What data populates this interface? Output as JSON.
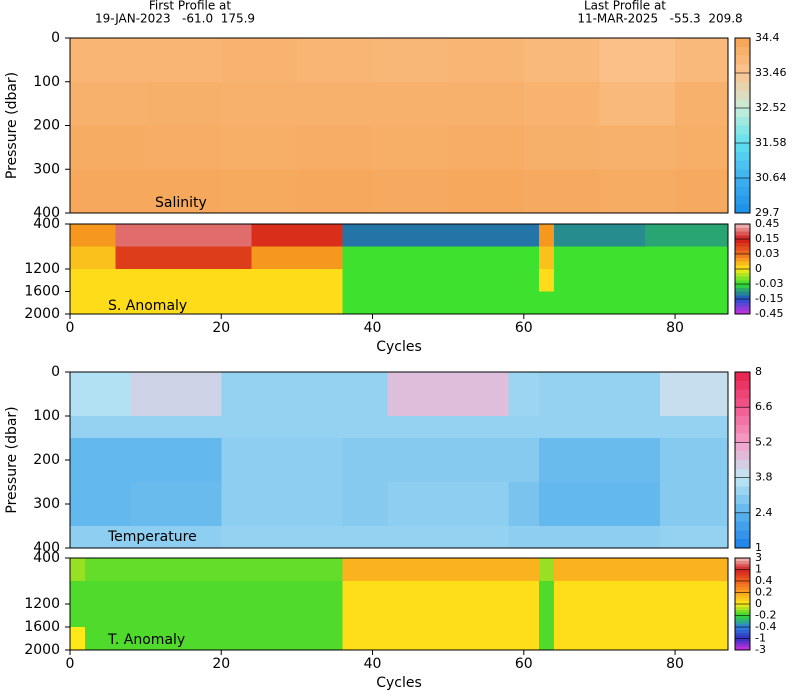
{
  "header": {
    "first_label": "First Profile at",
    "first_value": "19-JAN-2023   -61.0  175.9",
    "last_label": "Last Profile at",
    "last_value": "11-MAR-2025   -55.3  209.8"
  },
  "chart_data": [
    {
      "type": "heatmap",
      "panel_label": "Salinity",
      "ylabel": "Pressure (dbar)",
      "invert_y": true,
      "xlim": [
        0,
        87
      ],
      "ylim": [
        0,
        400
      ],
      "yticks": [
        0,
        100,
        200,
        300,
        400
      ],
      "x_edges": [
        0,
        10,
        20,
        30,
        40,
        50,
        60,
        70,
        80,
        87
      ],
      "y_edges": [
        0,
        100,
        200,
        300,
        400
      ],
      "values": [
        [
          33.9,
          33.9,
          33.95,
          33.9,
          33.85,
          33.9,
          33.8,
          33.6,
          33.8
        ],
        [
          34.0,
          34.05,
          34.0,
          34.0,
          34.0,
          34.0,
          33.95,
          33.8,
          34.0
        ],
        [
          34.15,
          34.12,
          34.1,
          34.12,
          34.1,
          34.12,
          34.05,
          34.0,
          34.1
        ],
        [
          34.25,
          34.25,
          34.22,
          34.25,
          34.2,
          34.25,
          34.2,
          34.15,
          34.2
        ]
      ],
      "colorbar": {
        "ticks": [
          34.4,
          33.46,
          32.52,
          31.58,
          30.64,
          29.7
        ],
        "colors": [
          "#f5a352",
          "#fbc592",
          "#c8ecd8",
          "#5fe0f0",
          "#3fb0f0",
          "#1a8fe8"
        ]
      }
    },
    {
      "type": "heatmap",
      "panel_label": "S. Anomaly",
      "xlabel": "Cycles",
      "invert_y": true,
      "xlim": [
        0,
        87
      ],
      "xticks": [
        0,
        20,
        40,
        60,
        80
      ],
      "ylim": [
        400,
        2000
      ],
      "yticks": [
        400,
        1200,
        1600,
        2000
      ],
      "x_edges": [
        0,
        6,
        24,
        36,
        62,
        64,
        76,
        87
      ],
      "y_edges": [
        400,
        800,
        1200,
        1600,
        2000
      ],
      "values": [
        [
          0.02,
          0.3,
          0.12,
          -0.12,
          0.02,
          -0.1,
          -0.08
        ],
        [
          0.01,
          0.1,
          0.02,
          -0.028,
          0.01,
          -0.028,
          -0.028
        ],
        [
          0.003,
          0.003,
          0.003,
          -0.028,
          0.003,
          -0.028,
          -0.028
        ],
        [
          0.003,
          0.003,
          0.003,
          -0.028,
          -0.028,
          -0.028,
          -0.028
        ]
      ],
      "colorbar": {
        "ticks": [
          0.45,
          0.15,
          0.03,
          0,
          -0.03,
          -0.15,
          -0.45
        ],
        "colors": [
          "#f0c0c0",
          "#d01818",
          "#f07020",
          "#ffe818",
          "#30e030",
          "#2050d0",
          "#d030e0"
        ]
      }
    },
    {
      "type": "heatmap",
      "panel_label": "Temperature",
      "ylabel": "Pressure (dbar)",
      "invert_y": true,
      "xlim": [
        0,
        87
      ],
      "ylim": [
        0,
        400
      ],
      "yticks": [
        0,
        100,
        200,
        300,
        400
      ],
      "x_edges": [
        0,
        8,
        20,
        36,
        42,
        58,
        62,
        78,
        87
      ],
      "y_edges": [
        0,
        100,
        150,
        250,
        350,
        400
      ],
      "values": [
        [
          3.6,
          4.2,
          3.2,
          3.2,
          4.6,
          3.3,
          3.2,
          4.0
        ],
        [
          3.2,
          3.2,
          3.2,
          3.2,
          3.2,
          3.2,
          3.2,
          3.2
        ],
        [
          2.5,
          2.5,
          3.1,
          3.0,
          3.0,
          3.0,
          2.6,
          3.0
        ],
        [
          2.5,
          2.6,
          3.1,
          3.0,
          3.1,
          2.8,
          2.5,
          3.0
        ],
        [
          3.1,
          3.1,
          3.2,
          3.2,
          3.2,
          3.1,
          3.1,
          3.2
        ]
      ],
      "colorbar": {
        "ticks": [
          8,
          6.6,
          5.2,
          3.8,
          2.4,
          1
        ],
        "colors": [
          "#e8204a",
          "#f05890",
          "#f4a0c8",
          "#c0e8f4",
          "#5cb4ec",
          "#1a80e8"
        ]
      }
    },
    {
      "type": "heatmap",
      "panel_label": "T. Anomaly",
      "xlabel": "Cycles",
      "invert_y": true,
      "xlim": [
        0,
        87
      ],
      "xticks": [
        0,
        20,
        40,
        60,
        80
      ],
      "ylim": [
        400,
        2000
      ],
      "yticks": [
        400,
        1200,
        1600,
        2000
      ],
      "x_edges": [
        0,
        2,
        36,
        62,
        64,
        87
      ],
      "y_edges": [
        400,
        800,
        1200,
        1600,
        2000
      ],
      "values": [
        [
          -0.1,
          -0.15,
          0.15,
          -0.1,
          0.15
        ],
        [
          -0.17,
          -0.17,
          0.03,
          -0.17,
          0.03
        ],
        [
          -0.17,
          -0.17,
          0.03,
          -0.17,
          0.03
        ],
        [
          0,
          -0.17,
          0.03,
          -0.17,
          0.03
        ]
      ],
      "colorbar": {
        "ticks": [
          3,
          1,
          0.4,
          0.2,
          0,
          -0.2,
          -0.4,
          -1,
          -3
        ],
        "colors": [
          "#f0c0c0",
          "#d02020",
          "#f06020",
          "#f8a020",
          "#ffe818",
          "#30d830",
          "#3080e0",
          "#3030c0",
          "#d030e0"
        ]
      }
    }
  ]
}
